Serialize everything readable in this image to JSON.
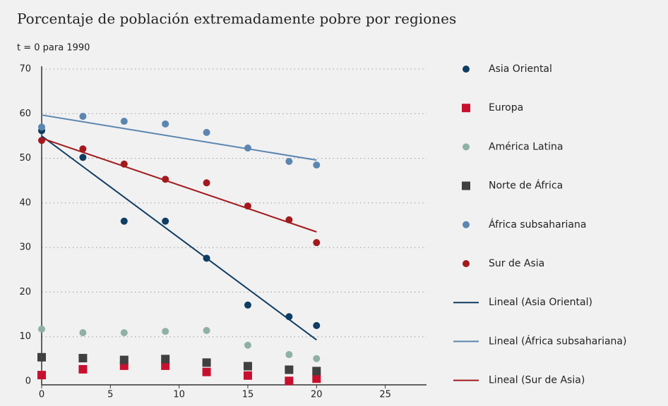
{
  "chart_data": {
    "type": "scatter",
    "title": "Porcentaje de población extremadamente pobre por regiones",
    "subtitle": "t = 0 para 1990",
    "xlim": [
      0,
      28
    ],
    "xticks": [
      0,
      5,
      10,
      15,
      20,
      25
    ],
    "ylim": [
      0,
      70
    ],
    "yticks": [
      0,
      10,
      20,
      30,
      40,
      50,
      60,
      70
    ],
    "grid": true,
    "legend": "right",
    "series": [
      {
        "name": "Asia Oriental",
        "color": "#0f3d63",
        "marker": "circle",
        "x": [
          0,
          3,
          6,
          9,
          12,
          15,
          18,
          20
        ],
        "values": [
          56.2,
          50.2,
          35.9,
          35.9,
          27.6,
          17.1,
          14.5,
          12.5
        ]
      },
      {
        "name": "Europa",
        "color": "#c8102e",
        "marker": "square",
        "x": [
          0,
          3,
          6,
          9,
          12,
          15,
          18,
          20
        ],
        "values": [
          1.4,
          2.7,
          3.5,
          3.5,
          2.1,
          1.3,
          0.1,
          0.6
        ]
      },
      {
        "name": "América Latina",
        "color": "#8fb0a6",
        "marker": "circle",
        "x": [
          0,
          3,
          6,
          9,
          12,
          15,
          18,
          20
        ],
        "values": [
          11.7,
          10.9,
          10.9,
          11.2,
          11.4,
          8.1,
          6,
          5.1
        ]
      },
      {
        "name": "Norte de África",
        "color": "#404040",
        "marker": "square",
        "x": [
          0,
          3,
          6,
          9,
          12,
          15,
          18,
          20
        ],
        "values": [
          5.4,
          5.2,
          4.8,
          5,
          4.2,
          3.4,
          2.6,
          2.3
        ]
      },
      {
        "name": "África subsahariana",
        "color": "#5b86b0",
        "marker": "circle",
        "x": [
          0,
          3,
          6,
          9,
          12,
          15,
          18,
          20
        ],
        "values": [
          57,
          59.4,
          58.3,
          57.7,
          55.8,
          52.3,
          49.3,
          48.5
        ]
      },
      {
        "name": "Sur de Asia",
        "color": "#a3191c",
        "marker": "circle",
        "x": [
          0,
          3,
          6,
          9,
          12,
          15,
          18,
          20
        ],
        "values": [
          54,
          52.1,
          48.7,
          45.3,
          44.5,
          39.3,
          36.2,
          31.1
        ]
      },
      {
        "name": "Lineal (Asia Oriental)",
        "color": "#0f3d63",
        "marker": "line",
        "x": [
          0,
          20
        ],
        "values": [
          55,
          9.3
        ]
      },
      {
        "name": "Lineal (África subsahariana)",
        "color": "#5b86b0",
        "marker": "line",
        "x": [
          0,
          20
        ],
        "values": [
          59.7,
          49.6
        ]
      },
      {
        "name": "Lineal (Sur de Asia)",
        "color": "#a3191c",
        "marker": "line",
        "x": [
          0,
          20
        ],
        "values": [
          54.5,
          33.5
        ]
      }
    ]
  }
}
